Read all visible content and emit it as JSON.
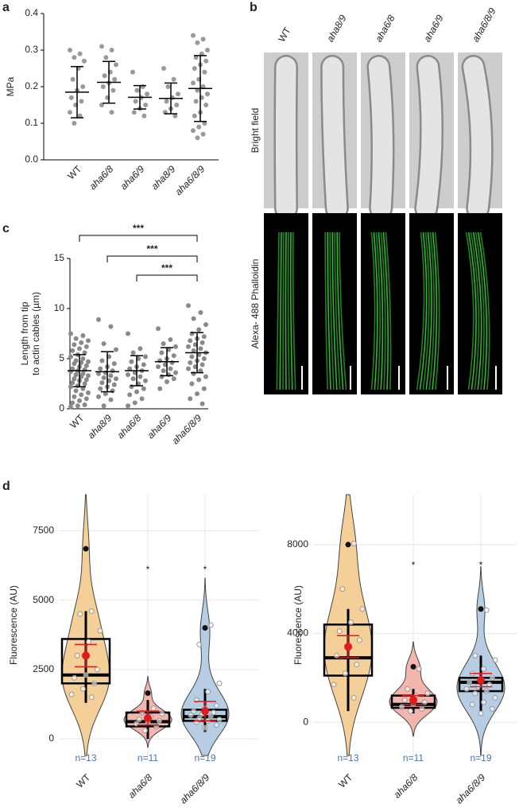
{
  "image_panel": {
    "panel": "b",
    "columns": [
      "WT",
      "aha8/9",
      "aha6/8",
      "aha6/9",
      "aha6/8/9"
    ],
    "rows": [
      "Bright field",
      "Alexa- 488 Phalloidin"
    ]
  },
  "chart_data": [
    {
      "panel": "a",
      "type": "dot",
      "y_label": [
        "MPa"
      ],
      "point_color": "#9a9a9a",
      "categories": [
        "WT",
        "aha6/8",
        "aha6/9",
        "aha8/9",
        "aha6/8/9"
      ],
      "ylim": [
        0,
        0.4
      ],
      "yticks": [
        {
          "value": 0,
          "label": "0.0"
        },
        0.1,
        0.2,
        0.3,
        0.4
      ],
      "groups": [
        {
          "points": [
            0.3,
            0.29,
            0.28,
            0.27,
            0.25,
            0.22,
            0.2,
            0.19,
            0.17,
            0.16,
            0.15,
            0.13,
            0.12,
            0.1
          ],
          "mean": 0.185,
          "sd": 0.07
        },
        {
          "points": [
            0.31,
            0.3,
            0.28,
            0.26,
            0.24,
            0.23,
            0.22,
            0.21,
            0.2,
            0.19,
            0.17,
            0.15,
            0.13
          ],
          "mean": 0.212,
          "sd": 0.057
        },
        {
          "points": [
            0.24,
            0.2,
            0.19,
            0.18,
            0.17,
            0.16,
            0.15,
            0.14,
            0.13,
            0.12
          ],
          "mean": 0.171,
          "sd": 0.032
        },
        {
          "points": [
            0.25,
            0.22,
            0.2,
            0.18,
            0.17,
            0.16,
            0.15,
            0.14,
            0.13,
            0.12
          ],
          "mean": 0.168,
          "sd": 0.042
        },
        {
          "points": [
            0.34,
            0.33,
            0.32,
            0.3,
            0.29,
            0.28,
            0.27,
            0.26,
            0.25,
            0.24,
            0.22,
            0.21,
            0.2,
            0.19,
            0.18,
            0.17,
            0.16,
            0.15,
            0.13,
            0.12,
            0.1,
            0.09,
            0.08,
            0.07,
            0.06
          ],
          "mean": 0.195,
          "sd": 0.09
        }
      ]
    },
    {
      "panel": "c",
      "type": "dot",
      "y_label": [
        "Length from tip",
        "to actin cables (µm)"
      ],
      "point_color": "#8a8a8a",
      "categories": [
        "WT",
        "aha8/9",
        "aha6/8",
        "aha6/9",
        "aha6/8/9"
      ],
      "ylim": [
        0,
        15
      ],
      "yticks": [
        0,
        5,
        10,
        15
      ],
      "groups": [
        {
          "points": [
            7.5,
            7.3,
            7.0,
            6.8,
            6.6,
            6.4,
            6.2,
            6.0,
            5.8,
            5.6,
            5.4,
            5.2,
            5.0,
            4.8,
            4.7,
            4.6,
            4.5,
            4.3,
            4.2,
            4.0,
            3.9,
            3.8,
            3.7,
            3.5,
            3.4,
            3.3,
            3.2,
            3.0,
            2.9,
            2.8,
            2.6,
            2.5,
            2.3,
            2.2,
            2.0,
            1.8,
            1.6,
            1.4,
            1.2,
            1.0,
            0.8,
            0.6,
            0.4,
            0.3,
            0.2
          ],
          "mean": 3.8,
          "sd": 1.6
        },
        {
          "points": [
            8.9,
            8.2,
            6.5,
            5.9,
            5.2,
            4.8,
            4.5,
            4.2,
            4.0,
            3.8,
            3.6,
            3.5,
            3.3,
            3.1,
            3.0,
            2.8,
            2.6,
            2.4,
            2.2,
            2.0,
            1.8,
            1.5,
            1.2,
            0.9,
            0.3
          ],
          "mean": 3.7,
          "sd": 2.0
        },
        {
          "points": [
            7.5,
            6.0,
            5.6,
            5.2,
            5.0,
            4.7,
            4.4,
            4.2,
            4.0,
            3.8,
            3.6,
            3.4,
            3.2,
            3.0,
            2.8,
            2.5,
            2.2,
            2.0,
            1.7,
            1.4,
            1.0,
            0.6,
            0.3
          ],
          "mean": 3.8,
          "sd": 1.5
        },
        {
          "points": [
            8.0,
            6.9,
            6.5,
            6.2,
            5.9,
            5.6,
            5.3,
            5.0,
            4.8,
            4.6,
            4.4,
            4.2,
            4.0,
            3.8,
            3.6,
            3.4,
            3.2,
            3.0,
            2.7,
            2.0
          ],
          "mean": 4.7,
          "sd": 1.4
        },
        {
          "points": [
            10.3,
            9.6,
            9.0,
            8.4,
            7.9,
            7.5,
            7.2,
            7.0,
            6.8,
            6.6,
            6.4,
            6.2,
            6.0,
            5.8,
            5.6,
            5.4,
            5.2,
            5.0,
            4.8,
            4.6,
            4.4,
            4.2,
            4.0,
            3.8,
            3.5,
            3.2,
            2.9,
            2.5,
            2.0,
            1.5,
            1.0,
            0.5
          ],
          "mean": 5.6,
          "sd": 2.0
        }
      ],
      "significance": [
        {
          "from": "WT",
          "to": "aha6/8/9",
          "label": "***"
        },
        {
          "from": "aha8/9",
          "to": "aha6/8/9",
          "label": "***"
        },
        {
          "from": "aha6/8",
          "to": "aha6/8/9",
          "label": "***"
        }
      ]
    },
    {
      "panel": "d",
      "type": "violin",
      "y_label": [
        "Fluorescence (AU)"
      ],
      "grid": true,
      "mean_color": "#e31a1c",
      "n_color": "#4a72b8",
      "categories": [
        "WT",
        "aha6/8",
        "aha6/8/9"
      ],
      "n_labels": [
        "n=13",
        "n=11",
        "n=19"
      ],
      "ylim": [
        -600,
        8800
      ],
      "yticks": [
        0,
        2500,
        5000,
        7500
      ],
      "groups": [
        {
          "color": "#f5cf98",
          "points": [
            6850,
            4600,
            4500,
            3900,
            3500,
            3000,
            2500,
            2300,
            2200,
            2000,
            1800,
            1600,
            1500
          ],
          "q1": 2000,
          "median": 2300,
          "q3": 3600,
          "whisker_low": 1300,
          "whisker_high": 4600,
          "mean": 3000,
          "mean_err": 400
        },
        {
          "color": "#f3b6ae",
          "points": [
            1650,
            1100,
            950,
            900,
            800,
            700,
            650,
            600,
            550,
            450,
            300
          ],
          "q1": 450,
          "median": 620,
          "q3": 950,
          "whisker_low": 0,
          "whisker_high": 1400,
          "mean": 750,
          "mean_err": 250
        },
        {
          "color": "#b6cde4",
          "points": [
            4000,
            4100,
            3400,
            2000,
            1700,
            1400,
            1200,
            1100,
            1000,
            950,
            900,
            850,
            800,
            750,
            700,
            650,
            600,
            500,
            400
          ],
          "q1": 650,
          "median": 800,
          "q3": 1050,
          "whisker_low": 250,
          "whisker_high": 1800,
          "mean": 1000,
          "mean_err": 350
        }
      ],
      "annotations": [
        {
          "category": "aha6/8",
          "text": "*",
          "y": 6200
        },
        {
          "category": "aha6/8/9",
          "text": "*",
          "y": 6200
        }
      ]
    },
    {
      "type": "violin",
      "y_label": [
        "Fluorescence (AU)"
      ],
      "grid": true,
      "mean_color": "#e31a1c",
      "n_color": "#4a72b8",
      "categories": [
        "WT",
        "aha6/8",
        "aha6/8/9"
      ],
      "n_labels": [
        "n=13",
        "n=11",
        "n=19"
      ],
      "ylim": [
        -1500,
        10250
      ],
      "yticks": [
        0,
        4000,
        8000
      ],
      "groups": [
        {
          "color": "#f5cf98",
          "points": [
            8000,
            8050,
            6000,
            5100,
            4500,
            4100,
            3700,
            3400,
            3000,
            2600,
            2200,
            1700,
            1100
          ],
          "q1": 2100,
          "median": 2900,
          "q3": 4400,
          "whisker_low": 500,
          "whisker_high": 5100,
          "mean": 3400,
          "mean_err": 500
        },
        {
          "color": "#f3b6ae",
          "points": [
            2500,
            2400,
            1500,
            1300,
            1200,
            1000,
            900,
            800,
            700,
            600,
            500
          ],
          "q1": 650,
          "median": 800,
          "q3": 1200,
          "whisker_low": 400,
          "whisker_high": 1500,
          "mean": 1000,
          "mean_err": 200
        },
        {
          "color": "#b6cde4",
          "points": [
            5100,
            5050,
            3000,
            2800,
            2400,
            2200,
            2000,
            1900,
            1800,
            1700,
            1600,
            1500,
            1400,
            1300,
            1100,
            900,
            800,
            600,
            400
          ],
          "q1": 1400,
          "median": 1800,
          "q3": 2000,
          "whisker_low": 500,
          "whisker_high": 3000,
          "mean": 1900,
          "mean_err": 300
        }
      ],
      "annotations": [
        {
          "category": "aha6/8",
          "text": "*",
          "y": 7200
        },
        {
          "category": "aha6/8/9",
          "text": "*",
          "y": 7200
        }
      ]
    }
  ]
}
